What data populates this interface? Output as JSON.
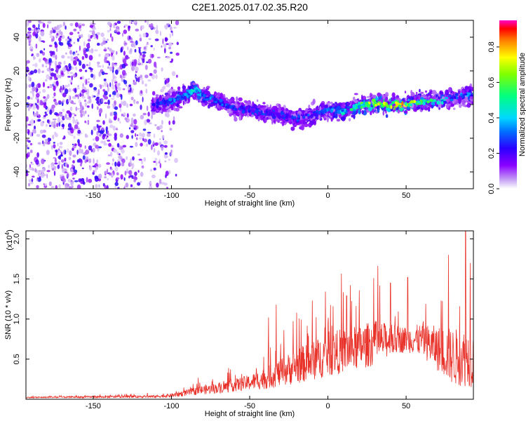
{
  "title": "C2E1.2025.017.02.35.R20",
  "chart_data": [
    {
      "type": "heatmap",
      "xlabel": "Height of straight line (km)",
      "ylabel": "Frequency (Hz)",
      "xlim": [
        -193,
        93
      ],
      "ylim": [
        -50,
        50
      ],
      "x_ticks": [
        "-150",
        "-100",
        "-50",
        "0",
        "50"
      ],
      "x_tick_values": [
        -150,
        -100,
        -50,
        0,
        50
      ],
      "y_ticks": [
        "40",
        "20",
        "0",
        "-20",
        "-40"
      ],
      "y_tick_values": [
        40,
        20,
        0,
        -20,
        -40
      ],
      "colorbar": {
        "label": "Normalized spectral amplitude",
        "range": [
          0,
          0.95
        ],
        "ticks": [
          "0.0",
          "0.2",
          "0.4",
          "0.6",
          "0.8"
        ],
        "tick_values": [
          0.0,
          0.2,
          0.4,
          0.6,
          0.8
        ],
        "colormap": "rainbow"
      },
      "ridge": {
        "x": [
          -112,
          -100,
          -90,
          -85,
          -80,
          -70,
          -60,
          -50,
          -40,
          -30,
          -20,
          -10,
          0,
          10,
          20,
          30,
          40,
          50,
          60,
          70,
          80,
          93
        ],
        "center_hz": [
          0,
          2,
          6,
          9,
          5,
          2,
          -2,
          -3,
          -5,
          -6,
          -8,
          -7,
          -3,
          -4,
          -1,
          1,
          0,
          0,
          2,
          2,
          4,
          6
        ],
        "peak_amplitude": [
          0.3,
          0.35,
          0.45,
          0.5,
          0.45,
          0.35,
          0.3,
          0.3,
          0.3,
          0.3,
          0.3,
          0.35,
          0.4,
          0.5,
          0.6,
          0.8,
          0.9,
          0.85,
          0.7,
          0.5,
          0.4,
          0.4
        ]
      },
      "noise_region_x": [
        -193,
        -96
      ]
    },
    {
      "type": "line",
      "xlabel": "Height of straight line (km)",
      "ylabel": "SNR (10 * v/v)",
      "y_multiplier_label": "(x10",
      "y_multiplier_exp": "4",
      "y_multiplier_close": ")",
      "xlim": [
        -193,
        93
      ],
      "ylim": [
        0,
        21000
      ],
      "x_ticks": [
        "-150",
        "-100",
        "-50",
        "0",
        "50"
      ],
      "x_tick_values": [
        -150,
        -100,
        -50,
        0,
        50
      ],
      "y_ticks": [
        "0.5",
        "1.0",
        "1.5",
        "2.0"
      ],
      "y_tick_values": [
        5000,
        10000,
        15000,
        20000
      ],
      "series": [
        {
          "color": "#e8322a",
          "envelope_x": [
            -193,
            -150,
            -110,
            -100,
            -90,
            -80,
            -70,
            -60,
            -50,
            -40,
            -30,
            -20,
            -10,
            0,
            10,
            20,
            30,
            40,
            50,
            60,
            70,
            80,
            93
          ],
          "base": [
            200,
            250,
            300,
            400,
            700,
            1000,
            1200,
            1500,
            1800,
            2200,
            2800,
            3500,
            4000,
            4800,
            5200,
            5600,
            6200,
            6800,
            7000,
            6800,
            5500,
            4200,
            4000
          ],
          "spread": [
            100,
            150,
            200,
            300,
            500,
            700,
            800,
            1000,
            1200,
            1700,
            2200,
            2800,
            3000,
            3500,
            3500,
            3500,
            3500,
            2500,
            2000,
            2500,
            3500,
            4500,
            4500
          ],
          "spikes": [
            {
              "x": -38,
              "y": 10200
            },
            {
              "x": -33,
              "y": 11800
            },
            {
              "x": -20,
              "y": 10800
            },
            {
              "x": -10,
              "y": 12300
            },
            {
              "x": 12,
              "y": 12900
            },
            {
              "x": 20,
              "y": 13600
            },
            {
              "x": 40,
              "y": 14500
            },
            {
              "x": 51,
              "y": 15200
            },
            {
              "x": 77,
              "y": 18000
            },
            {
              "x": 88,
              "y": 21000
            },
            {
              "x": 91,
              "y": 17000
            }
          ]
        }
      ]
    }
  ]
}
